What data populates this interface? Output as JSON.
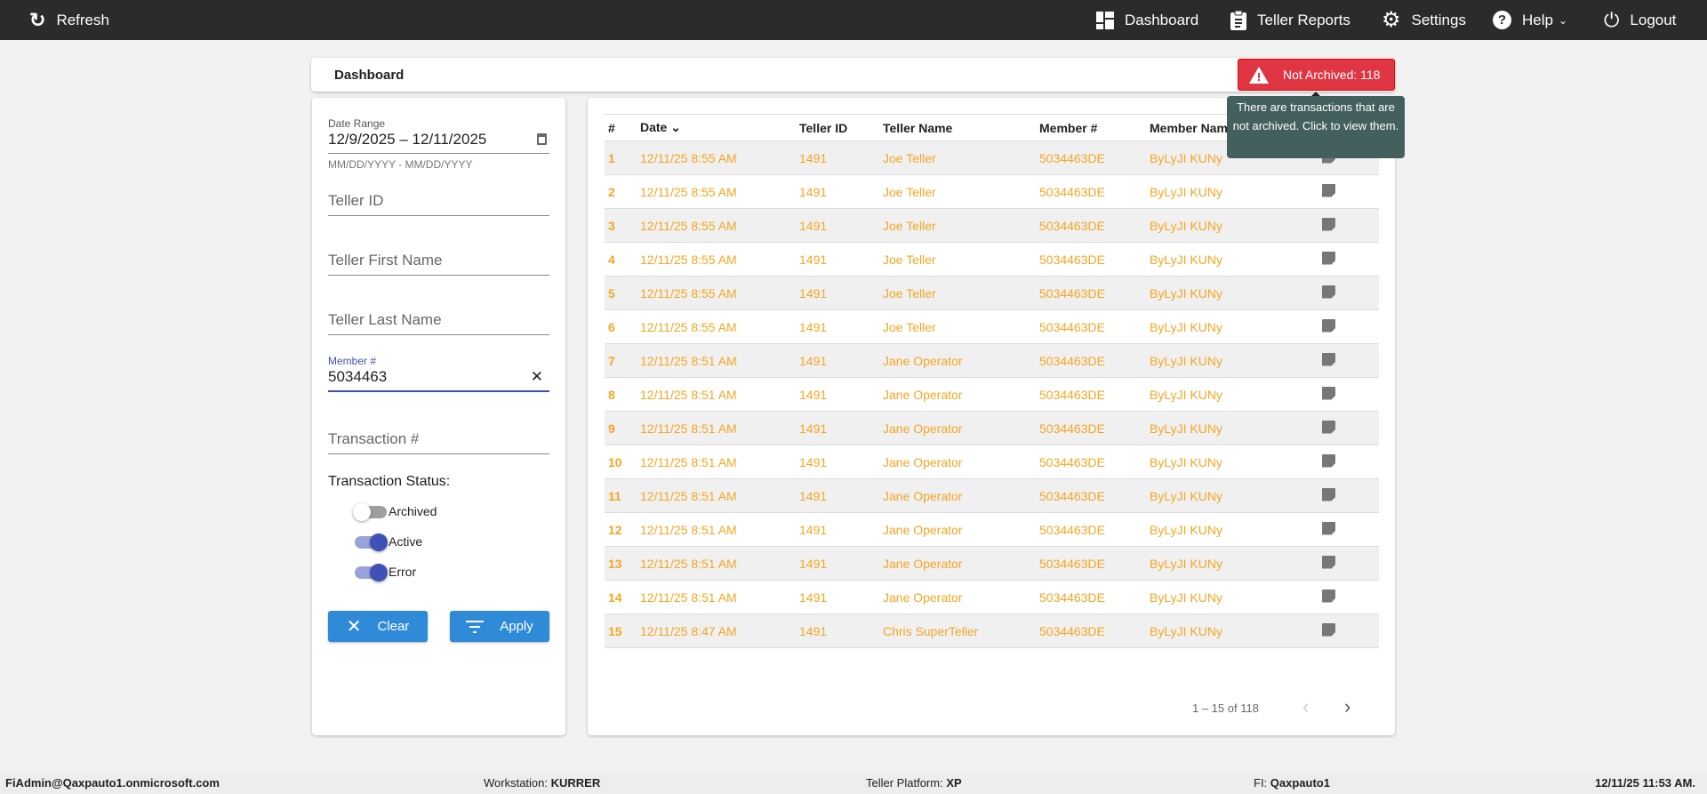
{
  "topbar": {
    "refresh": "Refresh",
    "nav": [
      {
        "label": "Dashboard",
        "icon": "dashboard-icon"
      },
      {
        "label": "Teller Reports",
        "icon": "clipboard-icon"
      },
      {
        "label": "Settings",
        "icon": "gear-icon"
      },
      {
        "label": "Help",
        "icon": "help-icon"
      },
      {
        "label": "Logout",
        "icon": "power-icon"
      }
    ]
  },
  "header": {
    "title": "Dashboard",
    "alert_label": "Not Archived: 118",
    "alert_color": "#e03543",
    "tooltip": "There are transactions that are not archived. Click to view them."
  },
  "filters": {
    "date_range_label": "Date Range",
    "date_range_value": "12/9/2025 – 12/11/2025",
    "date_hint": "MM/DD/YYYY - MM/DD/YYYY",
    "teller_id_placeholder": "Teller ID",
    "first_name_placeholder": "Teller First Name",
    "last_name_placeholder": "Teller Last Name",
    "member_label": "Member #",
    "member_value": "5034463",
    "transaction_placeholder": "Transaction #",
    "status_label": "Transaction Status:",
    "statuses": [
      {
        "label": "Archived",
        "on": false
      },
      {
        "label": "Active",
        "on": true
      },
      {
        "label": "Error",
        "on": true
      }
    ],
    "clear": "Clear",
    "apply": "Apply"
  },
  "table": {
    "columns": [
      "#",
      "Date",
      "Teller ID",
      "Teller Name",
      "Member #",
      "Member Name"
    ],
    "rows": [
      [
        "1",
        "12/11/25 8:55 AM",
        "1491",
        "Joe Teller",
        "5034463DE",
        "ByLyJI KUNy"
      ],
      [
        "2",
        "12/11/25 8:55 AM",
        "1491",
        "Joe Teller",
        "5034463DE",
        "ByLyJI KUNy"
      ],
      [
        "3",
        "12/11/25 8:55 AM",
        "1491",
        "Joe Teller",
        "5034463DE",
        "ByLyJI KUNy"
      ],
      [
        "4",
        "12/11/25 8:55 AM",
        "1491",
        "Joe Teller",
        "5034463DE",
        "ByLyJI KUNy"
      ],
      [
        "5",
        "12/11/25 8:55 AM",
        "1491",
        "Joe Teller",
        "5034463DE",
        "ByLyJI KUNy"
      ],
      [
        "6",
        "12/11/25 8:55 AM",
        "1491",
        "Joe Teller",
        "5034463DE",
        "ByLyJI KUNy"
      ],
      [
        "7",
        "12/11/25 8:51 AM",
        "1491",
        "Jane Operator",
        "5034463DE",
        "ByLyJI KUNy"
      ],
      [
        "8",
        "12/11/25 8:51 AM",
        "1491",
        "Jane Operator",
        "5034463DE",
        "ByLyJI KUNy"
      ],
      [
        "9",
        "12/11/25 8:51 AM",
        "1491",
        "Jane Operator",
        "5034463DE",
        "ByLyJI KUNy"
      ],
      [
        "10",
        "12/11/25 8:51 AM",
        "1491",
        "Jane Operator",
        "5034463DE",
        "ByLyJI KUNy"
      ],
      [
        "11",
        "12/11/25 8:51 AM",
        "1491",
        "Jane Operator",
        "5034463DE",
        "ByLyJI KUNy"
      ],
      [
        "12",
        "12/11/25 8:51 AM",
        "1491",
        "Jane Operator",
        "5034463DE",
        "ByLyJI KUNy"
      ],
      [
        "13",
        "12/11/25 8:51 AM",
        "1491",
        "Jane Operator",
        "5034463DE",
        "ByLyJI KUNy"
      ],
      [
        "14",
        "12/11/25 8:51 AM",
        "1491",
        "Jane Operator",
        "5034463DE",
        "ByLyJI KUNy"
      ],
      [
        "15",
        "12/11/25 8:47 AM",
        "1491",
        "Chris SuperTeller",
        "5034463DE",
        "ByLyJI KUNy"
      ]
    ],
    "row_color": "#f5a623",
    "pagination": "1 – 15 of 118"
  },
  "footer": {
    "user": "FiAdmin@Qaxpauto1.onmicrosoft.com",
    "workstation_label": "Workstation: ",
    "workstation": "KURRER",
    "platform_label": "Teller Platform: ",
    "platform": "XP",
    "fi_label": "FI: ",
    "fi": "Qaxpauto1",
    "datetime": "12/11/25 11:53 AM."
  }
}
